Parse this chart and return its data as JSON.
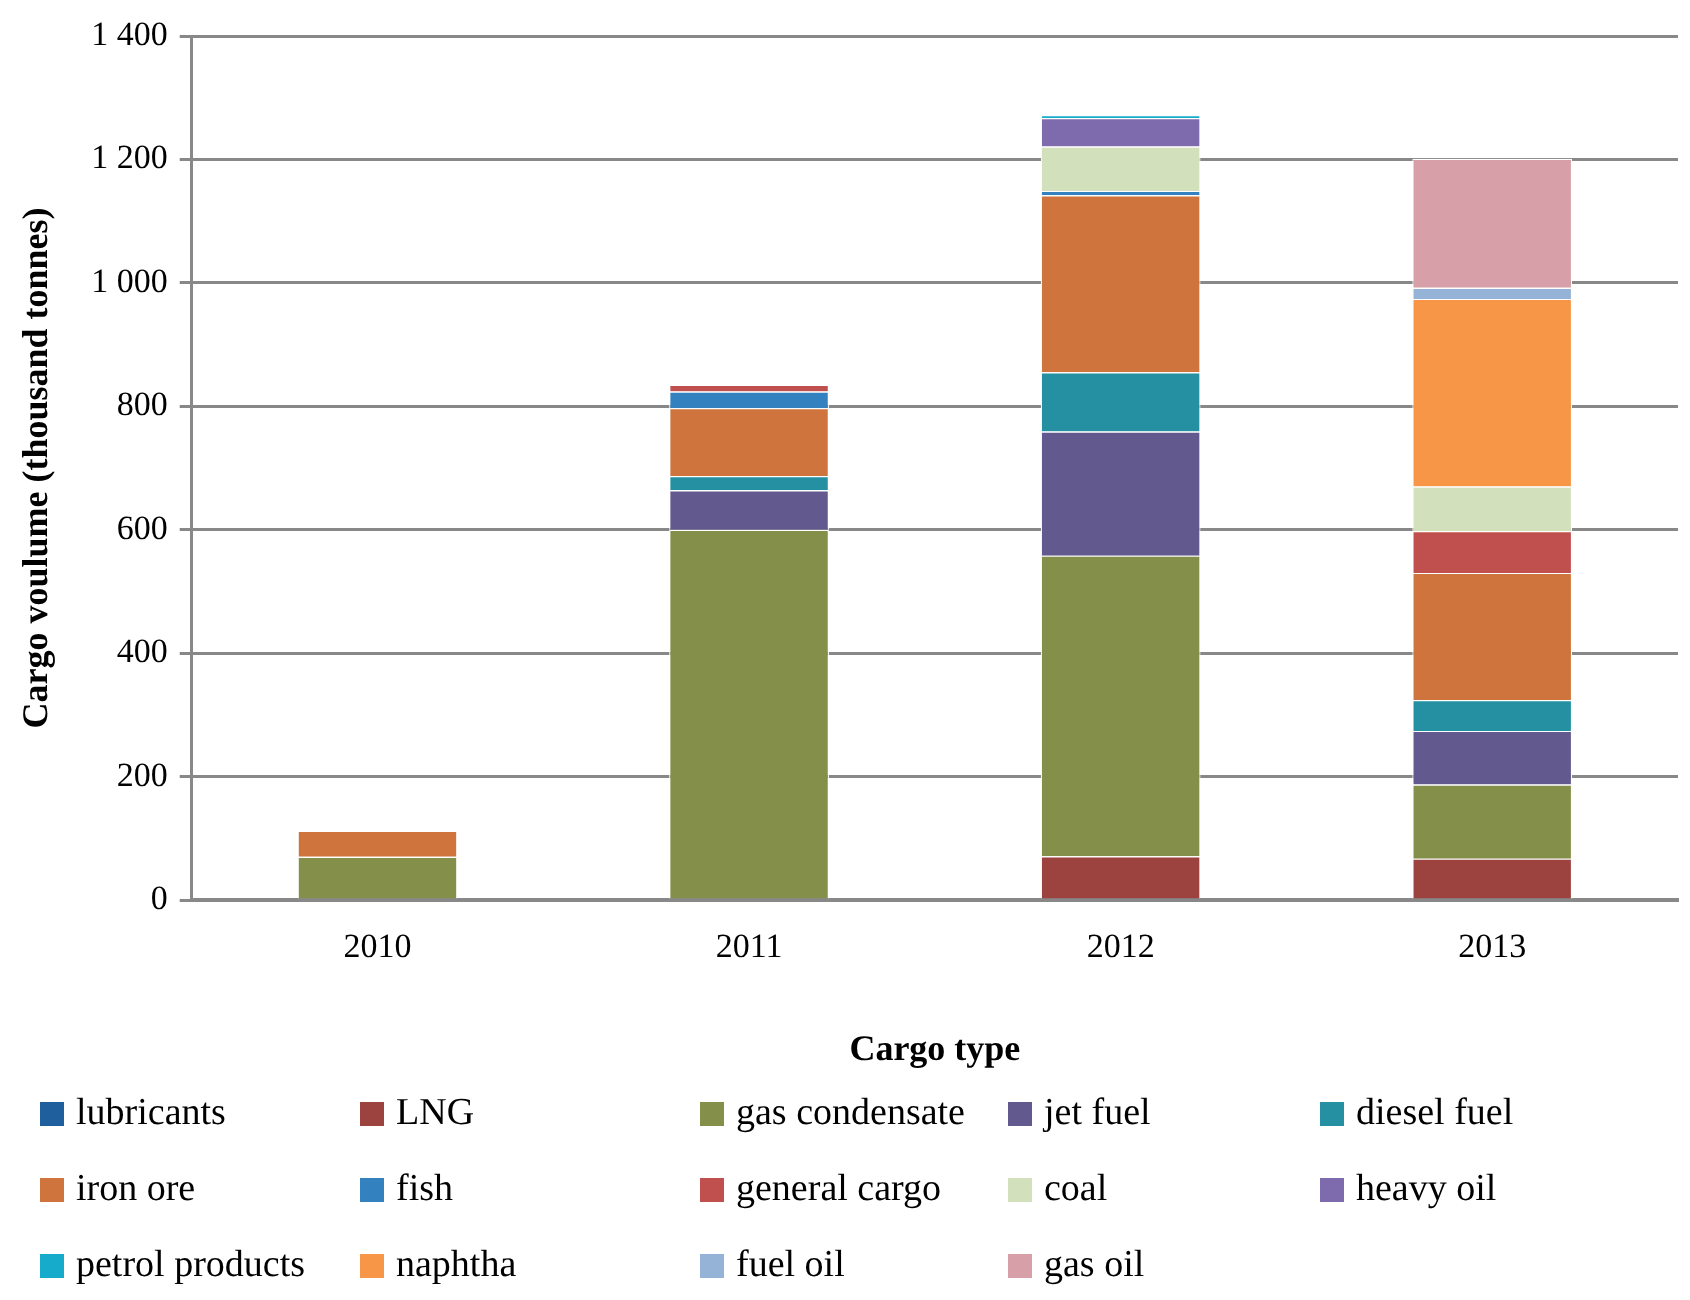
{
  "chart_data": {
    "type": "bar",
    "stacked": true,
    "xlabel": "Cargo type",
    "ylabel": "Cargo voulume (thousand tonnes)",
    "categories": [
      "2010",
      "2011",
      "2012",
      "2013"
    ],
    "ylim": [
      0,
      1400
    ],
    "yticks": [
      0,
      200,
      400,
      600,
      800,
      {
        "value": 1000,
        "label": "1 000"
      },
      {
        "value": 1200,
        "label": "1 200"
      },
      {
        "value": 1400,
        "label": "1 400"
      }
    ],
    "grid": "y",
    "legend": "bottom",
    "series": [
      {
        "name": "lubricants",
        "color": "#1f5f9e",
        "values": [
          null,
          null,
          null,
          null
        ]
      },
      {
        "name": "LNG",
        "color": "#9c4340",
        "values": [
          null,
          null,
          71,
          67
        ]
      },
      {
        "name": "gas condensate",
        "color": "#84904a",
        "values": [
          70,
          600,
          487,
          120
        ]
      },
      {
        "name": "jet fuel",
        "color": "#625a8e",
        "values": [
          null,
          64,
          201,
          87
        ]
      },
      {
        "name": "diesel fuel",
        "color": "#2490a2",
        "values": [
          null,
          23,
          96,
          50
        ]
      },
      {
        "name": "iron ore",
        "color": "#cf743c",
        "values": [
          42,
          110,
          287,
          206
        ]
      },
      {
        "name": "fish",
        "color": "#3381bf",
        "values": [
          null,
          27,
          7,
          null
        ]
      },
      {
        "name": "general cargo",
        "color": "#c0504d",
        "values": [
          null,
          11,
          null,
          68
        ]
      },
      {
        "name": "coal",
        "color": "#d3e0bc",
        "values": [
          null,
          null,
          72,
          72
        ]
      },
      {
        "name": "heavy oil",
        "color": "#7d6bad",
        "values": [
          null,
          null,
          46,
          null
        ]
      },
      {
        "name": "petrol products",
        "color": "#16aacb",
        "values": [
          null,
          null,
          5,
          null
        ]
      },
      {
        "name": "naphtha",
        "color": "#f79646",
        "values": [
          null,
          null,
          null,
          304
        ]
      },
      {
        "name": "fuel oil",
        "color": "#95b3d7",
        "values": [
          null,
          null,
          null,
          18
        ]
      },
      {
        "name": "gas oil",
        "color": "#d7a0a8",
        "values": [
          null,
          null,
          null,
          209
        ]
      }
    ]
  }
}
